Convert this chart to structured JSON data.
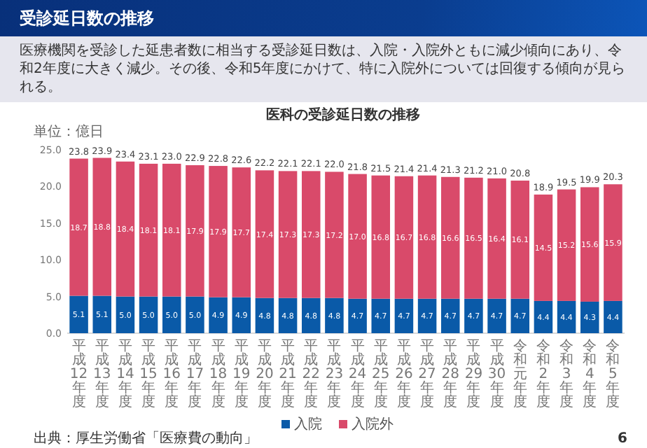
{
  "chart_data": {
    "type": "bar",
    "stacked": true,
    "title": "受診延日数の推移",
    "subtitle": "医療機関を受診した延患者数に相当する受診延日数は、入院・入院外ともに減少傾向にあり、令和2年度に大きく減少。その後、令和5年度にかけて、特に入院外については回復する傾向が見られる。",
    "categories": [
      "平成12年度",
      "平成13年度",
      "平成14年度",
      "平成15年度",
      "平成16年度",
      "平成17年度",
      "平成18年度",
      "平成19年度",
      "平成20年度",
      "平成21年度",
      "平成22年度",
      "平成23年度",
      "平成24年度",
      "平成25年度",
      "平成26年度",
      "平成27年度",
      "平成28年度",
      "平成29年度",
      "平成30年度",
      "令和元年度",
      "令和2年度",
      "令和3年度",
      "令和4年度",
      "令和5年度"
    ],
    "series": [
      {
        "name": "入院",
        "color": "#0a5aa8",
        "values": [
          5.1,
          5.1,
          5.0,
          5.0,
          5.0,
          5.0,
          4.9,
          4.9,
          4.8,
          4.8,
          4.8,
          4.8,
          4.7,
          4.7,
          4.7,
          4.7,
          4.7,
          4.7,
          4.7,
          4.7,
          4.4,
          4.4,
          4.3,
          4.4
        ],
        "value_labels": [
          "5.1",
          "5.1",
          "5.0",
          "5.0",
          "5.0",
          "5.0",
          "4.9",
          "4.9",
          "4.8",
          "4.8",
          "4.8",
          "4.8",
          "4.7",
          "4.7",
          "4.7",
          "4.7",
          "4.7",
          "4.7",
          "4.7",
          "4.7",
          "4.4",
          "4.4",
          "4.3",
          "4.4"
        ]
      },
      {
        "name": "入院外",
        "color": "#d94a6a",
        "values": [
          18.7,
          18.8,
          18.4,
          18.1,
          18.1,
          17.9,
          17.9,
          17.7,
          17.4,
          17.3,
          17.3,
          17.2,
          17.0,
          16.8,
          16.7,
          16.8,
          16.6,
          16.5,
          16.4,
          16.1,
          14.5,
          15.2,
          15.6,
          15.9
        ],
        "value_labels": [
          "18.7",
          "18.8",
          "18.4",
          "18.1",
          "18.1",
          "17.9",
          "17.9",
          "17.7",
          "17.4",
          "17.3",
          "17.3",
          "17.2",
          "17.0",
          "16.8",
          "16.7",
          "16.8",
          "16.6",
          "16.5",
          "16.4",
          "16.1",
          "14.5",
          "15.2",
          "15.6",
          "15.9"
        ]
      }
    ],
    "totals": [
      "23.8",
      "23.9",
      "23.4",
      "23.1",
      "23.0",
      "22.9",
      "22.8",
      "22.6",
      "22.2",
      "22.1",
      "22.1",
      "22.0",
      "21.8",
      "21.5",
      "21.4",
      "21.4",
      "21.3",
      "21.2",
      "21.0",
      "20.8",
      "18.9",
      "19.5",
      "19.9",
      "20.3"
    ],
    "ylim": [
      0,
      25
    ],
    "yticks": [
      {
        "value": 0,
        "label": "0.0"
      },
      {
        "value": 5,
        "label": "5.0"
      },
      {
        "value": 10,
        "label": "10.0"
      },
      {
        "value": 15,
        "label": "15.0"
      },
      {
        "value": 20,
        "label": "20.0"
      },
      {
        "value": 25,
        "label": "25.0"
      }
    ],
    "legend": "bottom",
    "annotations": [
      "医科の受診延日数の推移",
      "単位：億日",
      "出典：厚生労働省「医療費の動向」",
      "6"
    ]
  }
}
